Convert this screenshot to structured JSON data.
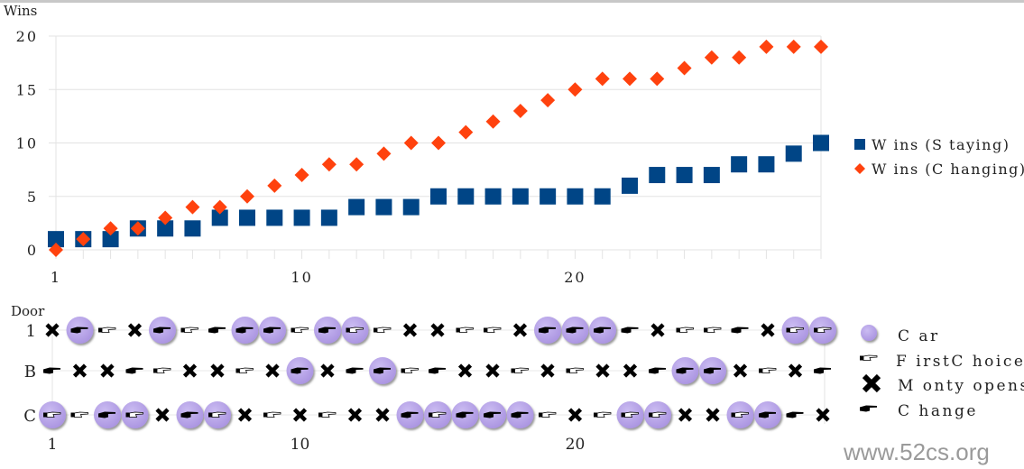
{
  "chart_data": [
    {
      "type": "scatter",
      "ylabel": "Wins",
      "xlabel": "",
      "x_ticks": [
        "1",
        "10",
        "20"
      ],
      "y_ticks": [
        "0",
        "5",
        "10",
        "15",
        "20"
      ],
      "xlim": [
        1,
        29
      ],
      "ylim": [
        0,
        20
      ],
      "grid": "horizontal",
      "legend_position": "right",
      "x": [
        1,
        2,
        3,
        4,
        5,
        6,
        7,
        8,
        9,
        10,
        11,
        12,
        13,
        14,
        15,
        16,
        17,
        18,
        19,
        20,
        21,
        22,
        23,
        24,
        25,
        26,
        27,
        28,
        29
      ],
      "series": [
        {
          "name": "W ins (S taying)",
          "marker": "square",
          "color": "#004586",
          "values": [
            1,
            1,
            1,
            2,
            2,
            2,
            3,
            3,
            3,
            3,
            3,
            4,
            4,
            4,
            5,
            5,
            5,
            5,
            5,
            5,
            5,
            6,
            7,
            7,
            7,
            8,
            8,
            9,
            10
          ]
        },
        {
          "name": "W ins (C hanging)",
          "marker": "diamond",
          "color": "#ff420e",
          "values": [
            0,
            1,
            2,
            2,
            3,
            4,
            4,
            5,
            6,
            7,
            8,
            8,
            9,
            10,
            10,
            11,
            12,
            13,
            14,
            15,
            16,
            16,
            16,
            17,
            18,
            18,
            19,
            19,
            19
          ]
        }
      ]
    },
    {
      "type": "scatter",
      "ylabel": "Door",
      "door_labels": [
        "1",
        "B",
        "C"
      ],
      "x_ticks": [
        "1",
        "10",
        "20"
      ],
      "legend_position": "right",
      "legend": [
        {
          "name": "C ar",
          "icon": "car-circle",
          "color": "#b9a5e8"
        },
        {
          "name": "F irstC hoice",
          "icon": "white-pointing-hand"
        },
        {
          "name": "M onty opens",
          "icon": "heavy-x"
        },
        {
          "name": "C hange",
          "icon": "black-pointing-hand"
        }
      ],
      "trials": [
        {
          "car": "C",
          "first": "C",
          "monty": "1",
          "change": "B"
        },
        {
          "car": "1",
          "first": "C",
          "monty": "B",
          "change": "1"
        },
        {
          "car": "C",
          "first": "1",
          "monty": "B",
          "change": "C"
        },
        {
          "car": "C",
          "first": "C",
          "monty": "1",
          "change": "B"
        },
        {
          "car": "1",
          "first": "B",
          "monty": "C",
          "change": "1"
        },
        {
          "car": "C",
          "first": "1",
          "monty": "B",
          "change": "C"
        },
        {
          "car": "C",
          "first": "C",
          "monty": "B",
          "change": "1"
        },
        {
          "car": "1",
          "first": "B",
          "monty": "C",
          "change": "1"
        },
        {
          "car": "1",
          "first": "C",
          "monty": "B",
          "change": "1"
        },
        {
          "car": "B",
          "first": "1",
          "monty": "C",
          "change": "B"
        },
        {
          "car": "1",
          "first": "C",
          "monty": "B",
          "change": "1"
        },
        {
          "car": "1",
          "first": "1",
          "monty": "C",
          "change": "B"
        },
        {
          "car": "B",
          "first": "1",
          "monty": "C",
          "change": "B"
        },
        {
          "car": "C",
          "first": "B",
          "monty": "1",
          "change": "C"
        },
        {
          "car": "C",
          "first": "C",
          "monty": "1",
          "change": "B"
        },
        {
          "car": "C",
          "first": "1",
          "monty": "B",
          "change": "C"
        },
        {
          "car": "C",
          "first": "1",
          "monty": "B",
          "change": "C"
        },
        {
          "car": "C",
          "first": "B",
          "monty": "1",
          "change": "C"
        },
        {
          "car": "1",
          "first": "C",
          "monty": "B",
          "change": "1"
        },
        {
          "car": "1",
          "first": "B",
          "monty": "C",
          "change": "1"
        },
        {
          "car": "1",
          "first": "C",
          "monty": "B",
          "change": "1"
        },
        {
          "car": "C",
          "first": "C",
          "monty": "B",
          "change": "1"
        },
        {
          "car": "C",
          "first": "C",
          "monty": "1",
          "change": "B"
        },
        {
          "car": "B",
          "first": "1",
          "monty": "C",
          "change": "B"
        },
        {
          "car": "B",
          "first": "1",
          "monty": "C",
          "change": "B"
        },
        {
          "car": "C",
          "first": "C",
          "monty": "B",
          "change": "1"
        },
        {
          "car": "C",
          "first": "B",
          "monty": "1",
          "change": "C"
        },
        {
          "car": "1",
          "first": "1",
          "monty": "B",
          "change": "C"
        },
        {
          "car": "1",
          "first": "1",
          "monty": "C",
          "change": "B"
        }
      ]
    }
  ],
  "watermark": "www.52cs.org"
}
